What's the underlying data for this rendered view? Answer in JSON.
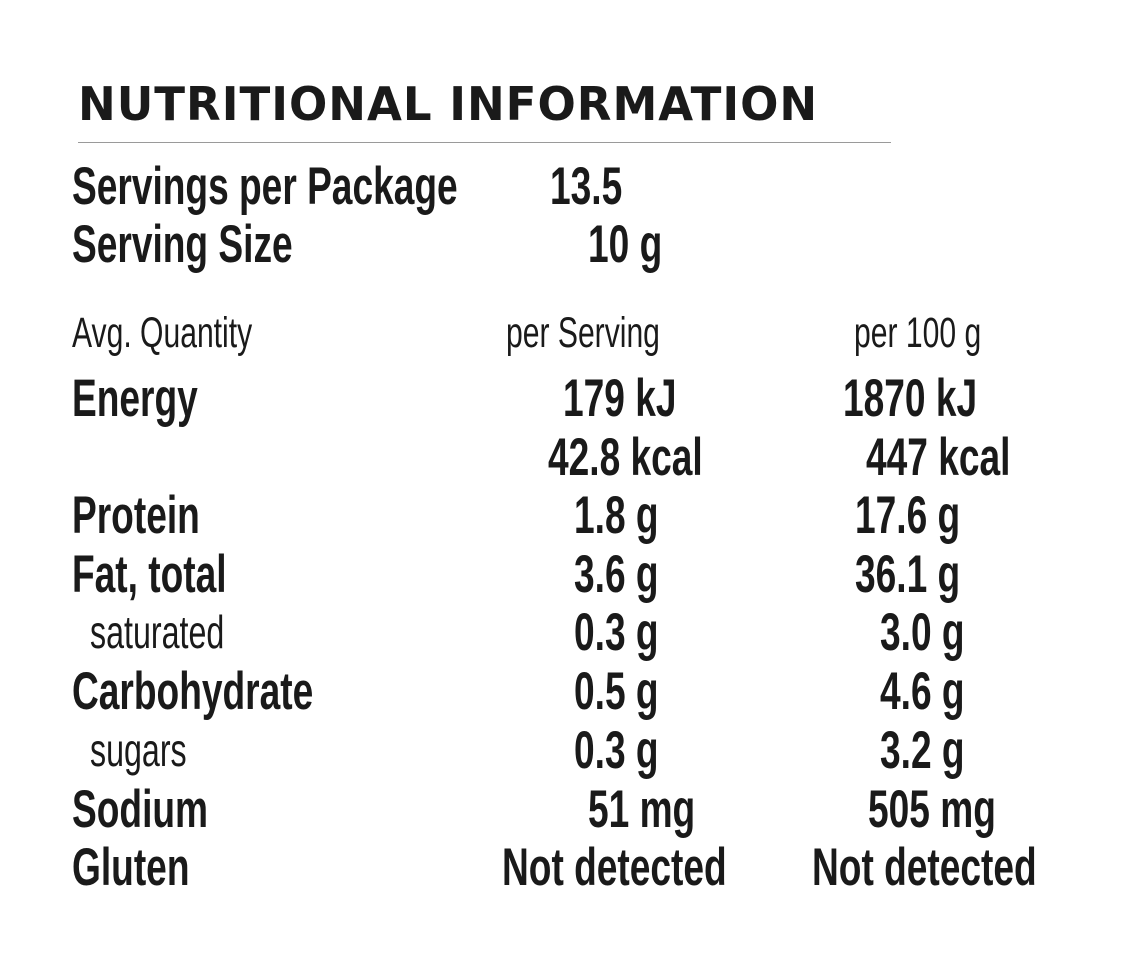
{
  "title": "NUTRITIONAL INFORMATION",
  "servings": {
    "per_package_label": "Servings per Package",
    "per_package_value": "13.5",
    "size_label": "Serving Size",
    "size_value": "10 g"
  },
  "table": {
    "headers": {
      "quantity": "Avg. Quantity",
      "per_serving": "per Serving",
      "per_100g": "per 100 g"
    },
    "rows": [
      {
        "label": "Energy",
        "per_serving": "179 kJ",
        "per_100g": "1870 kJ"
      },
      {
        "label": "",
        "per_serving": "42.8 kcal",
        "per_100g": "447 kcal"
      },
      {
        "label": "Protein",
        "per_serving": "1.8 g",
        "per_100g": "17.6 g"
      },
      {
        "label": "Fat, total",
        "per_serving": "3.6 g",
        "per_100g": "36.1 g"
      },
      {
        "label": "saturated",
        "per_serving": "0.3 g",
        "per_100g": "3.0 g"
      },
      {
        "label": "Carbohydrate",
        "per_serving": "0.5 g",
        "per_100g": "4.6 g"
      },
      {
        "label": "sugars",
        "per_serving": "0.3 g",
        "per_100g": "3.2 g"
      },
      {
        "label": "Sodium",
        "per_serving": "51 mg",
        "per_100g": "505 mg"
      },
      {
        "label": "Gluten",
        "per_serving": "Not detected",
        "per_100g": "Not detected"
      }
    ]
  }
}
